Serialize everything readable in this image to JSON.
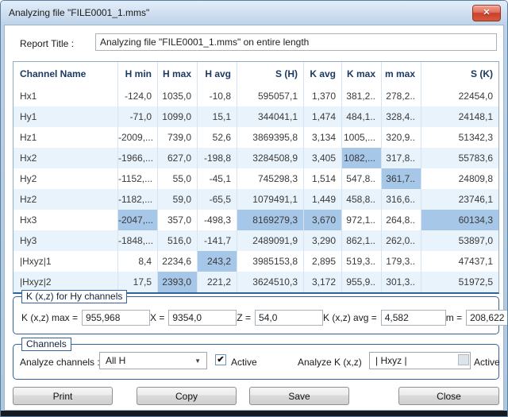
{
  "window": {
    "title": "Analyzing file \"FILE0001_1.mms\""
  },
  "icons": {
    "close_glyph": "✕",
    "dropdown_arrow": "▼",
    "checkmark": "✔"
  },
  "report": {
    "label": "Report Title :",
    "value": "Analyzing file \"FILE0001_1.mms\" on entire length"
  },
  "table": {
    "columns": [
      "Channel Name",
      "H min",
      "H max",
      "H avg",
      "S (H)",
      "K avg",
      "K max",
      "m max",
      "S (K)"
    ],
    "rows": [
      {
        "name": "Hx1",
        "values": [
          "-124,0",
          "1035,0",
          "-10,8",
          "595057,1",
          "1,370",
          "381,2..",
          "278,2..",
          "22454,0"
        ],
        "highlights": []
      },
      {
        "name": "Hy1",
        "values": [
          "-71,0",
          "1099,0",
          "15,1",
          "344041,1",
          "1,474",
          "484,1..",
          "328,4..",
          "24148,1"
        ],
        "highlights": []
      },
      {
        "name": "Hz1",
        "values": [
          "-2009,...",
          "739,0",
          "52,6",
          "3869395,8",
          "3,134",
          "1005,...",
          "320,9..",
          "51342,3"
        ],
        "highlights": []
      },
      {
        "name": "Hx2",
        "values": [
          "-1966,...",
          "627,0",
          "-198,8",
          "3284508,9",
          "3,405",
          "1082,...",
          "317,8..",
          "55783,6"
        ],
        "highlights": [
          5
        ]
      },
      {
        "name": "Hy2",
        "values": [
          "-1152,...",
          "55,0",
          "-45,1",
          "745298,3",
          "1,514",
          "547,8..",
          "361,7..",
          "24809,8"
        ],
        "highlights": [
          6
        ]
      },
      {
        "name": "Hz2",
        "values": [
          "-1182,...",
          "59,0",
          "-65,5",
          "1079491,1",
          "1,449",
          "458,8..",
          "316,6..",
          "23746,1"
        ],
        "highlights": []
      },
      {
        "name": "Hx3",
        "values": [
          "-2047,...",
          "357,0",
          "-498,3",
          "8169279,3",
          "3,670",
          "972,1..",
          "264,8..",
          "60134,3"
        ],
        "highlights": [
          0,
          3,
          4,
          7
        ]
      },
      {
        "name": "Hy3",
        "values": [
          "-1848,...",
          "516,0",
          "-141,7",
          "2489091,9",
          "3,290",
          "862,1..",
          "262,0..",
          "53897,0"
        ],
        "highlights": []
      },
      {
        "name": "|Hxyz|1",
        "values": [
          "8,4",
          "2234,6",
          "243,2",
          "3985153,8",
          "2,895",
          "519,3..",
          "179,3..",
          "47437,1"
        ],
        "highlights": [
          2
        ]
      },
      {
        "name": "|Hxyz|2",
        "values": [
          "17,5",
          "2393,0",
          "221,2",
          "3624510,3",
          "3,172",
          "955,9..",
          "301,3..",
          "51972,5"
        ],
        "highlights": [
          1
        ]
      }
    ]
  },
  "kxz": {
    "title": "K (x,z) for Hy channels",
    "fields": [
      {
        "label": "K (x,z) max =",
        "value": "955,968"
      },
      {
        "label": "X =",
        "value": "9354,0"
      },
      {
        "label": "Z =",
        "value": "54,0"
      },
      {
        "label": "K (x,z) avg =",
        "value": "4,582"
      },
      {
        "label": "m =",
        "value": "208,622"
      }
    ]
  },
  "channels": {
    "title": "Channels",
    "analyze_channels_label": "Analyze channels :",
    "analyze_channels_value": "All H",
    "analyze_channels_active": {
      "label": "Active",
      "checked": true
    },
    "analyze_k_label": "Analyze K (x,z)",
    "analyze_k_value": "| Hxyz |",
    "analyze_k_active": {
      "label": "Active",
      "checked": false
    }
  },
  "buttons": {
    "print": "Print",
    "copy": "Copy",
    "save": "Save",
    "close": "Close"
  },
  "colors": {
    "cell_highlight": "#a6c7e8",
    "row_alternate": "#e9f3fb",
    "header_text": "#1c3a63",
    "groupbox_border": "#33639c",
    "titlebar": "#cdddef",
    "close_button": "#ca402a"
  }
}
